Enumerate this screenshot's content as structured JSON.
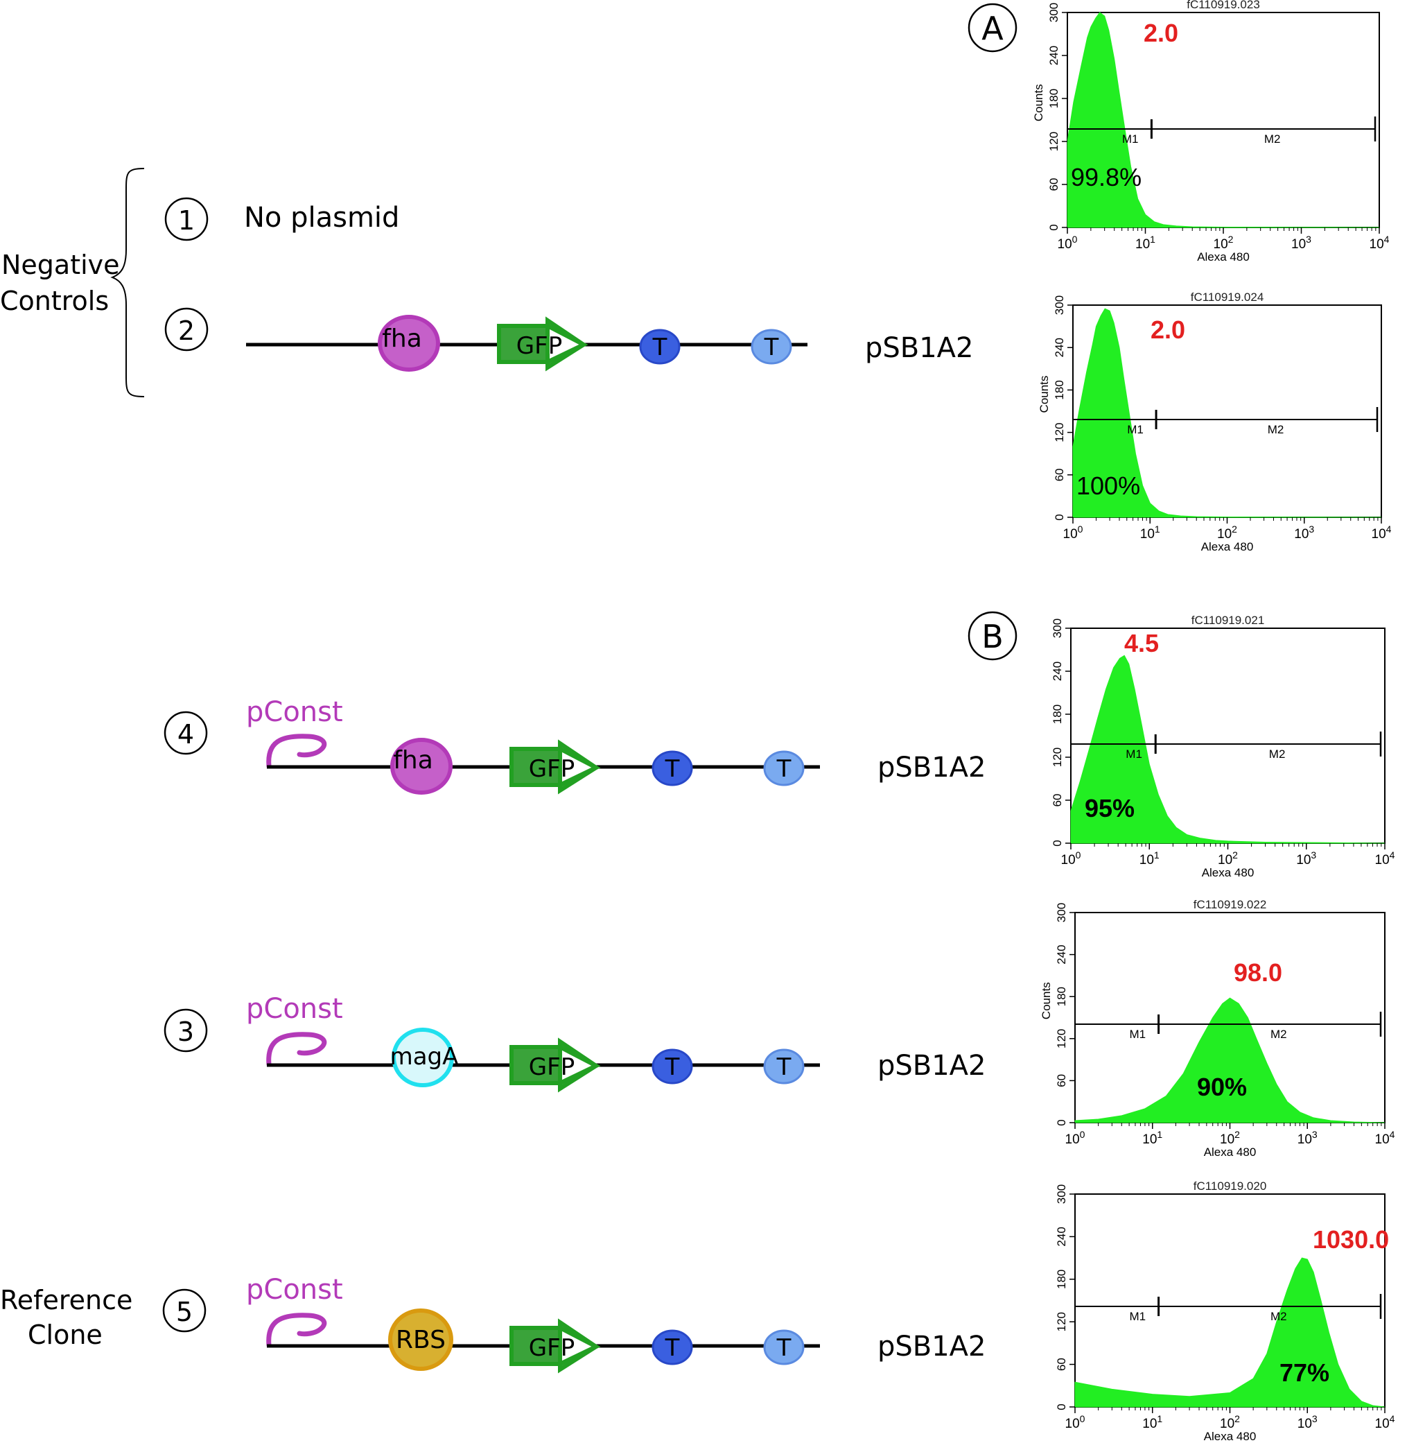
{
  "colors": {
    "green": "#22ee22",
    "red": "#e32020",
    "magenta": "#b33ab8",
    "fha_fill": "#c560c9",
    "magA_fill": "#d8f8fb",
    "magA_edge": "#20e0ee",
    "rbs_fill": "#d8b030",
    "rbs_edge": "#d99a10",
    "gfp_fill": "#3aa33a",
    "gfp_edge": "#22a022",
    "term_dark": "#3a5fe0",
    "term_light": "#7aaaf0"
  },
  "labels": {
    "negative_controls": [
      "Negative",
      "Controls"
    ],
    "reference_clone": [
      "Reference",
      "Clone"
    ],
    "panel_a": "A",
    "panel_b": "B",
    "no_plasmid": "No plasmid"
  },
  "constructs": [
    {
      "number": "1",
      "promoter": null,
      "parts": []
    },
    {
      "number": "2",
      "promoter": null,
      "parts": [
        "fha",
        "GFP",
        "T",
        "T"
      ],
      "vector": "pSB1A2"
    },
    {
      "number": "4",
      "promoter": "pConst",
      "parts": [
        "fha",
        "GFP",
        "T",
        "T"
      ],
      "vector": "pSB1A2"
    },
    {
      "number": "3",
      "promoter": "pConst",
      "parts": [
        "magA",
        "GFP",
        "T",
        "T"
      ],
      "vector": "pSB1A2"
    },
    {
      "number": "5",
      "promoter": "pConst",
      "parts": [
        "RBS",
        "GFP",
        "T",
        "T"
      ],
      "vector": "pSB1A2"
    }
  ],
  "chart_data": [
    {
      "type": "area",
      "title": "fC110919.023",
      "xlabel": "Alexa 480",
      "ylabel": "Counts",
      "xscale": "log",
      "xlim": [
        1,
        10000
      ],
      "ylim": [
        0,
        300
      ],
      "xticks": [
        "10^0",
        "10^1",
        "10^2",
        "10^3",
        "10^4"
      ],
      "yticks": [
        "0",
        "60",
        "120",
        "180",
        "240",
        "300"
      ],
      "gates": [
        "M1",
        "M2"
      ],
      "gate_boundary": 12,
      "mean": "2.0",
      "percent": "99.8%",
      "x": [
        1,
        1.2,
        1.5,
        1.8,
        2.0,
        2.3,
        2.6,
        3.0,
        3.4,
        4.0,
        4.6,
        5.5,
        6.5,
        8,
        10,
        13,
        17,
        25,
        40,
        100,
        1000,
        10000
      ],
      "y": [
        120,
        175,
        225,
        265,
        280,
        292,
        300,
        295,
        275,
        235,
        190,
        135,
        85,
        40,
        18,
        8,
        4,
        2,
        1,
        0.5,
        0.3,
        0
      ]
    },
    {
      "type": "area",
      "title": "fC110919.024",
      "xlabel": "Alexa 480",
      "ylabel": "Counts",
      "xscale": "log",
      "xlim": [
        1,
        10000
      ],
      "ylim": [
        0,
        300
      ],
      "xticks": [
        "10^0",
        "10^1",
        "10^2",
        "10^3",
        "10^4"
      ],
      "yticks": [
        "0",
        "60",
        "120",
        "180",
        "240",
        "300"
      ],
      "gates": [
        "M1",
        "M2"
      ],
      "gate_boundary": 12,
      "mean": "2.0",
      "percent": "100%",
      "x": [
        1,
        1.2,
        1.5,
        1.8,
        2.0,
        2.3,
        2.6,
        3.0,
        3.4,
        4.0,
        4.6,
        5.5,
        6.5,
        8,
        10,
        13,
        17,
        25,
        40,
        100,
        1000,
        10000
      ],
      "y": [
        100,
        150,
        205,
        245,
        270,
        285,
        295,
        292,
        275,
        240,
        195,
        140,
        90,
        45,
        20,
        9,
        4,
        2,
        1,
        0.5,
        0.3,
        0
      ]
    },
    {
      "type": "area",
      "title": "fC110919.021",
      "xlabel": "Alexa 480",
      "ylabel": "",
      "xscale": "log",
      "xlim": [
        1,
        10000
      ],
      "ylim": [
        0,
        300
      ],
      "xticks": [
        "10^0",
        "10^1",
        "10^2",
        "10^3",
        "10^4"
      ],
      "yticks": [
        "0",
        "60",
        "120",
        "180",
        "240",
        "300"
      ],
      "gates": [
        "M1",
        "M2"
      ],
      "gate_boundary": 12,
      "mean": "4.5",
      "percent": "95%",
      "x": [
        1,
        1.3,
        1.7,
        2.2,
        2.8,
        3.5,
        4.2,
        4.8,
        5.5,
        6.5,
        8,
        10,
        13,
        17,
        22,
        30,
        45,
        70,
        100,
        300,
        1000,
        10000
      ],
      "y": [
        45,
        85,
        130,
        175,
        215,
        245,
        258,
        262,
        250,
        215,
        165,
        110,
        68,
        38,
        22,
        12,
        7,
        4,
        3,
        1.5,
        1,
        0
      ]
    },
    {
      "type": "area",
      "title": "fC110919.022",
      "xlabel": "Alexa 480",
      "ylabel": "Counts",
      "xscale": "log",
      "xlim": [
        1,
        10000
      ],
      "ylim": [
        0,
        300
      ],
      "xticks": [
        "10^0",
        "10^1",
        "10^2",
        "10^3",
        "10^4"
      ],
      "yticks": [
        "0",
        "60",
        "120",
        "180",
        "240",
        "300"
      ],
      "gates": [
        "M1",
        "M2"
      ],
      "gate_boundary": 12,
      "mean": "98.0",
      "percent": "90%",
      "x": [
        1,
        2,
        4,
        8,
        15,
        25,
        40,
        60,
        80,
        100,
        130,
        170,
        220,
        300,
        400,
        550,
        800,
        1200,
        2000,
        4000,
        10000
      ],
      "y": [
        3,
        5,
        10,
        20,
        38,
        70,
        115,
        150,
        170,
        178,
        170,
        150,
        120,
        85,
        55,
        30,
        15,
        7,
        3,
        1,
        0
      ]
    },
    {
      "type": "area",
      "title": "fC110919.020",
      "xlabel": "Alexa 480",
      "ylabel": "",
      "xscale": "log",
      "xlim": [
        1,
        10000
      ],
      "ylim": [
        0,
        300
      ],
      "xticks": [
        "10^0",
        "10^1",
        "10^2",
        "10^3",
        "10^4"
      ],
      "yticks": [
        "0",
        "60",
        "120",
        "180",
        "240",
        "300"
      ],
      "gates": [
        "M1",
        "M2"
      ],
      "gate_boundary": 12,
      "mean": "1030.0",
      "percent": "77%",
      "x": [
        1,
        3,
        10,
        30,
        100,
        200,
        300,
        400,
        550,
        700,
        850,
        1000,
        1200,
        1500,
        1900,
        2500,
        3500,
        5000,
        7000,
        10000
      ],
      "y": [
        35,
        25,
        18,
        15,
        20,
        40,
        75,
        120,
        165,
        195,
        210,
        208,
        190,
        150,
        105,
        60,
        25,
        8,
        2,
        0
      ]
    }
  ]
}
